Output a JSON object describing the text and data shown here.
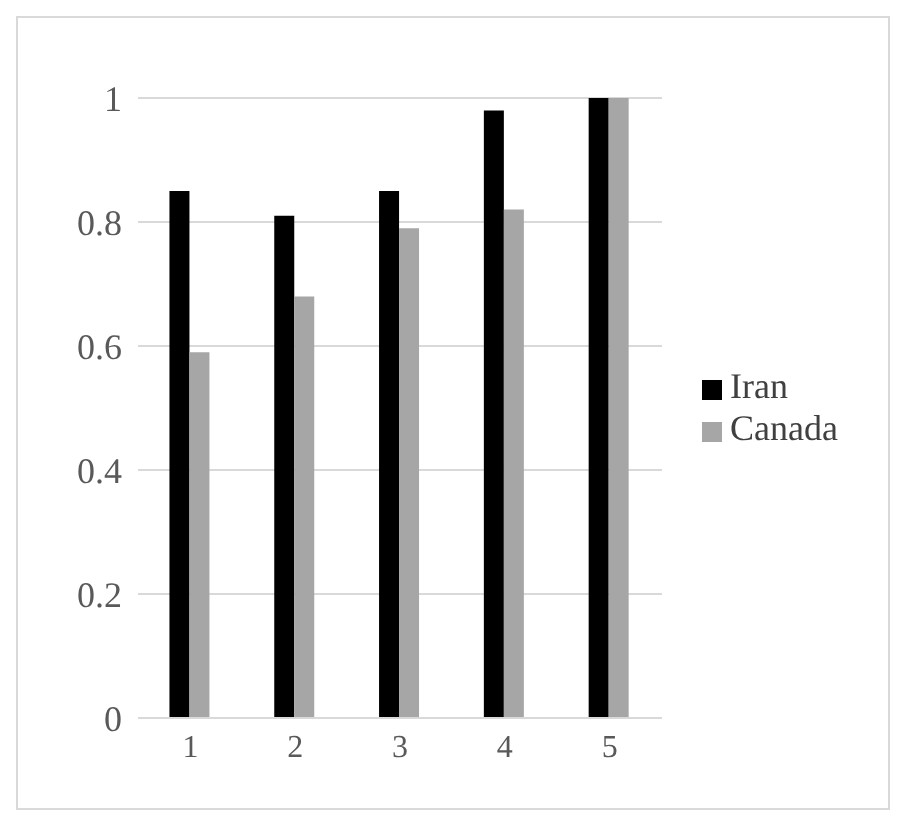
{
  "chart_data": {
    "type": "bar",
    "categories": [
      "1",
      "2",
      "3",
      "4",
      "5"
    ],
    "series": [
      {
        "name": "Iran",
        "color": "#000000",
        "values": [
          0.85,
          0.81,
          0.85,
          0.98,
          1.0
        ]
      },
      {
        "name": "Canada",
        "color": "#a6a6a6",
        "values": [
          0.59,
          0.68,
          0.79,
          0.82,
          1.0
        ]
      }
    ],
    "ylim": [
      0,
      1
    ],
    "yticks": [
      0,
      0.2,
      0.4,
      0.6,
      0.8,
      1
    ],
    "grid": "y",
    "legend": "right"
  }
}
